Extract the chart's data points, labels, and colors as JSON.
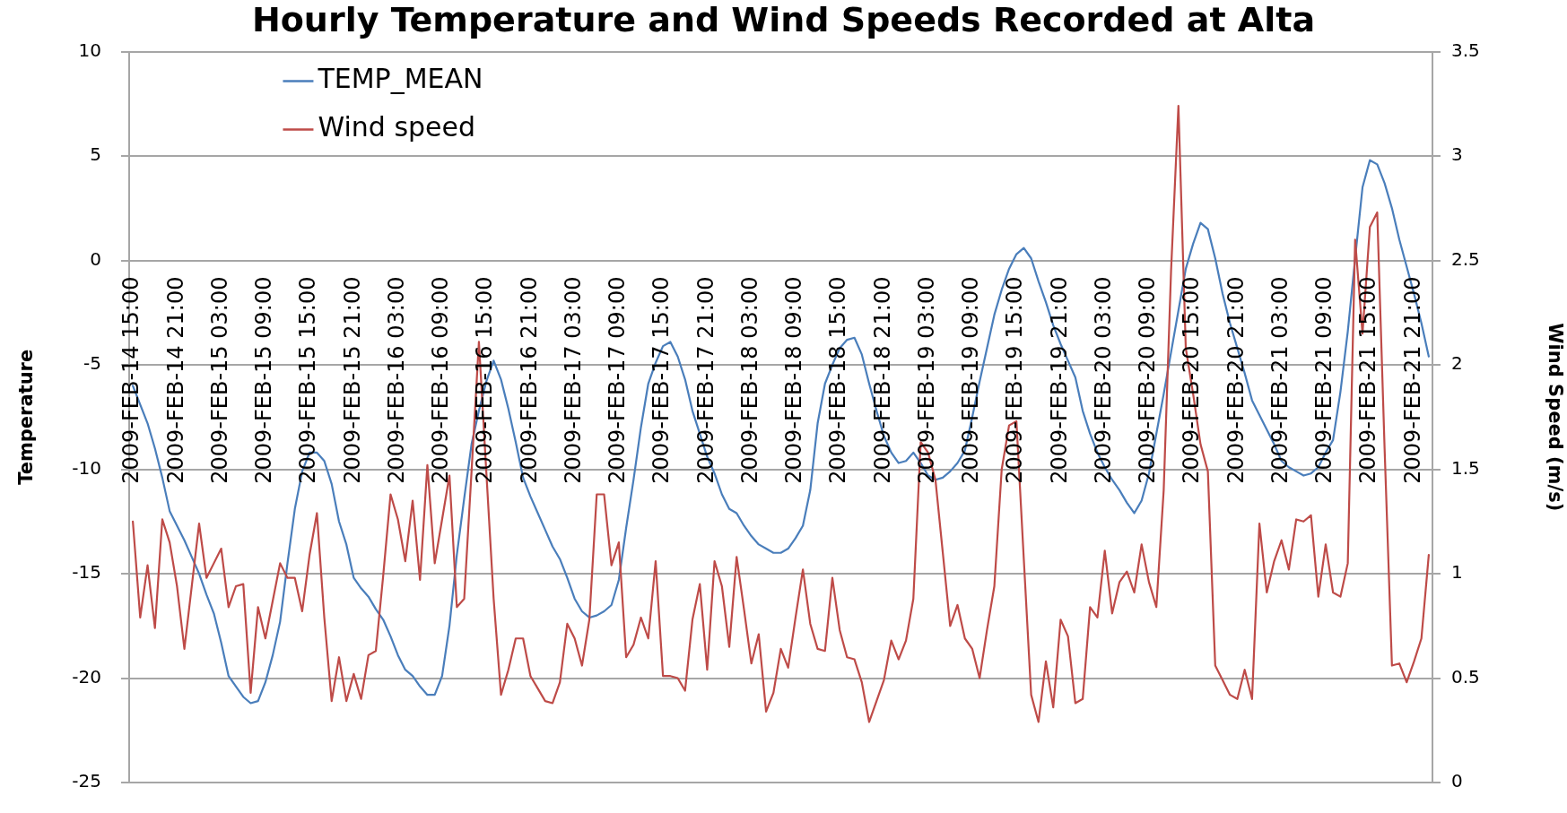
{
  "chart_data": {
    "type": "line",
    "title": "Hourly Temperature and Wind Speeds Recorded at Alta",
    "ylabel": "Temperature",
    "y2label": "Wind Speed (m/s)",
    "categories": [
      "2009-FEB-14 15:00",
      null,
      null,
      null,
      null,
      null,
      "2009-FEB-14 21:00",
      null,
      null,
      null,
      null,
      null,
      "2009-FEB-15 03:00",
      null,
      null,
      null,
      null,
      null,
      "2009-FEB-15 09:00",
      null,
      null,
      null,
      null,
      null,
      "2009-FEB-15 15:00",
      null,
      null,
      null,
      null,
      null,
      "2009-FEB-15 21:00",
      null,
      null,
      null,
      null,
      null,
      "2009-FEB-16 03:00",
      null,
      null,
      null,
      null,
      null,
      "2009-FEB-16 09:00",
      null,
      null,
      null,
      null,
      null,
      "2009-FEB-16 15:00",
      null,
      null,
      null,
      null,
      null,
      "2009-FEB-16 21:00",
      null,
      null,
      null,
      null,
      null,
      "2009-FEB-17 03:00",
      null,
      null,
      null,
      null,
      null,
      "2009-FEB-17 09:00",
      null,
      null,
      null,
      null,
      null,
      "2009-FEB-17 15:00",
      null,
      null,
      null,
      null,
      null,
      "2009-FEB-17 21:00",
      null,
      null,
      null,
      null,
      null,
      "2009-FEB-18 03:00",
      null,
      null,
      null,
      null,
      null,
      "2009-FEB-18 09:00",
      null,
      null,
      null,
      null,
      null,
      "2009-FEB-18 15:00",
      null,
      null,
      null,
      null,
      null,
      "2009-FEB-18 21:00",
      null,
      null,
      null,
      null,
      null,
      "2009-FEB-19 03:00",
      null,
      null,
      null,
      null,
      null,
      "2009-FEB-19 09:00",
      null,
      null,
      null,
      null,
      null,
      "2009-FEB-19 15:00",
      null,
      null,
      null,
      null,
      null,
      "2009-FEB-19 21:00",
      null,
      null,
      null,
      null,
      null,
      "2009-FEB-20 03:00",
      null,
      null,
      null,
      null,
      null,
      "2009-FEB-20 09:00",
      null,
      null,
      null,
      null,
      null,
      "2009-FEB-20 15:00",
      null,
      null,
      null,
      null,
      null,
      "2009-FEB-20 21:00",
      null,
      null,
      null,
      null,
      null,
      "2009-FEB-21 03:00",
      null,
      null,
      null,
      null,
      null,
      "2009-FEB-21 09:00",
      null,
      null,
      null,
      null,
      null,
      "2009-FEB-21 15:00",
      null,
      null,
      null,
      null,
      null,
      "2009-FEB-21 21:00",
      null,
      null
    ],
    "series": [
      {
        "name": "TEMP_MEAN",
        "color": "#4a7ebb",
        "values": [
          -6.0,
          -6.9,
          -7.8,
          -9.0,
          -10.4,
          -12.0,
          -12.7,
          -13.4,
          -14.2,
          -15.0,
          -16.0,
          -16.9,
          -18.3,
          -19.9,
          -20.4,
          -20.9,
          -21.2,
          -21.1,
          -20.2,
          -18.9,
          -17.3,
          -14.5,
          -11.9,
          -10.1,
          -9.2,
          -9.2,
          -9.6,
          -10.7,
          -12.5,
          -13.6,
          -15.2,
          -15.7,
          -16.1,
          -16.7,
          -17.2,
          -18.0,
          -18.9,
          -19.6,
          -19.9,
          -20.4,
          -20.8,
          -20.8,
          -19.9,
          -17.5,
          -14.1,
          -11.4,
          -8.8,
          -7.2,
          -5.8,
          -4.8,
          -5.7,
          -7.1,
          -8.7,
          -10.4,
          -11.3,
          -12.1,
          -12.9,
          -13.7,
          -14.3,
          -15.2,
          -16.2,
          -16.8,
          -17.1,
          -17.0,
          -16.8,
          -16.5,
          -15.3,
          -12.8,
          -10.5,
          -8.0,
          -5.9,
          -4.9,
          -4.1,
          -3.9,
          -4.6,
          -5.7,
          -7.2,
          -8.3,
          -9.4,
          -10.2,
          -11.2,
          -11.9,
          -12.1,
          -12.7,
          -13.2,
          -13.6,
          -13.8,
          -14.0,
          -14.0,
          -13.8,
          -13.3,
          -12.7,
          -11.0,
          -7.8,
          -5.9,
          -5.0,
          -4.2,
          -3.8,
          -3.7,
          -4.5,
          -5.9,
          -7.2,
          -8.4,
          -9.2,
          -9.7,
          -9.6,
          -9.2,
          -9.7,
          -10.3,
          -10.5,
          -10.4,
          -10.1,
          -9.7,
          -9.1,
          -7.5,
          -5.8,
          -4.2,
          -2.6,
          -1.4,
          -0.4,
          0.3,
          0.6,
          0.1,
          -1.0,
          -2.0,
          -3.1,
          -4.0,
          -4.8,
          -5.6,
          -7.2,
          -8.3,
          -9.2,
          -9.9,
          -10.5,
          -11.0,
          -11.6,
          -12.1,
          -11.5,
          -10.2,
          -8.3,
          -6.4,
          -4.4,
          -2.4,
          -0.4,
          0.8,
          1.8,
          1.5,
          0.1,
          -1.6,
          -3.0,
          -4.2,
          -5.4,
          -6.7,
          -7.4,
          -8.1,
          -8.8,
          -9.6,
          -9.9,
          -10.1,
          -10.3,
          -10.2,
          -9.9,
          -9.2,
          -8.6,
          -6.3,
          -3.4,
          0.1,
          3.5,
          4.8,
          4.6,
          3.7,
          2.5,
          1.0,
          -0.3,
          -1.6,
          -3.0,
          -4.6
        ]
      },
      {
        "name": "Wind speed",
        "color": "#be4b48",
        "axis": "y2",
        "values": [
          1.25,
          0.79,
          1.04,
          0.74,
          1.26,
          1.15,
          0.94,
          0.64,
          0.94,
          1.24,
          0.98,
          1.05,
          1.12,
          0.84,
          0.94,
          0.95,
          0.43,
          0.84,
          0.69,
          0.87,
          1.05,
          0.98,
          0.98,
          0.82,
          1.09,
          1.29,
          0.79,
          0.39,
          0.6,
          0.39,
          0.52,
          0.4,
          0.61,
          0.63,
          0.99,
          1.38,
          1.26,
          1.06,
          1.35,
          0.97,
          1.52,
          1.05,
          1.26,
          1.47,
          0.84,
          0.88,
          1.49,
          2.11,
          1.49,
          0.88,
          0.42,
          0.54,
          0.69,
          0.69,
          0.51,
          0.45,
          0.39,
          0.38,
          0.48,
          0.76,
          0.69,
          0.56,
          0.78,
          1.38,
          1.38,
          1.04,
          1.15,
          0.6,
          0.66,
          0.79,
          0.69,
          1.06,
          0.51,
          0.51,
          0.5,
          0.44,
          0.78,
          0.95,
          0.54,
          1.06,
          0.94,
          0.65,
          1.08,
          0.83,
          0.57,
          0.71,
          0.34,
          0.43,
          0.64,
          0.55,
          0.79,
          1.02,
          0.76,
          0.64,
          0.63,
          0.98,
          0.73,
          0.6,
          0.59,
          0.48,
          0.29,
          0.39,
          0.49,
          0.68,
          0.59,
          0.68,
          0.88,
          1.63,
          1.58,
          1.45,
          1.1,
          0.75,
          0.85,
          0.69,
          0.64,
          0.5,
          0.73,
          0.94,
          1.5,
          1.71,
          1.73,
          1.07,
          0.42,
          0.29,
          0.58,
          0.36,
          0.78,
          0.7,
          0.38,
          0.4,
          0.84,
          0.79,
          1.11,
          0.81,
          0.96,
          1.01,
          0.91,
          1.14,
          0.96,
          0.84,
          1.4,
          2.45,
          3.24,
          2.08,
          1.86,
          1.62,
          1.49,
          0.56,
          0.49,
          0.42,
          0.4,
          0.54,
          0.4,
          1.24,
          0.91,
          1.06,
          1.16,
          1.02,
          1.26,
          1.25,
          1.28,
          0.89,
          1.14,
          0.91,
          0.89,
          1.05,
          2.6,
          2.15,
          2.66,
          2.73,
          1.6,
          0.56,
          0.57,
          0.48,
          0.58,
          0.69,
          1.09
        ]
      }
    ],
    "ylim": [
      -25,
      10
    ],
    "yticks": [
      -25,
      -20,
      -15,
      -10,
      -5,
      0,
      5,
      10
    ],
    "y2lim": [
      0,
      3.5
    ],
    "y2ticks": [
      0,
      0.5,
      1,
      1.5,
      2,
      2.5,
      3,
      3.5
    ],
    "grid": "y",
    "legend": "top left"
  }
}
